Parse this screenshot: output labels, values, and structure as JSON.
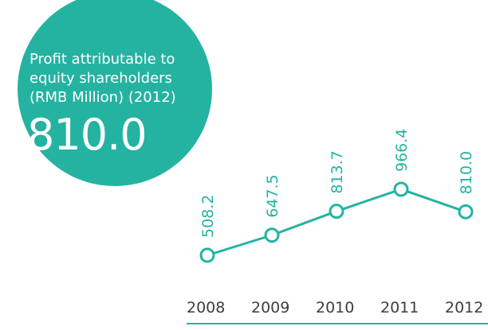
{
  "caption": {
    "line1": "Profit attributable to",
    "line2": "equity shareholders",
    "line3": "(RMB Million) (2012)"
  },
  "highlight_value": "810.0",
  "colors": {
    "accent": "#24b3a1",
    "year_text": "#3d3d3d",
    "background": "#ffffff"
  },
  "chart_data": {
    "type": "line",
    "categories": [
      "2008",
      "2009",
      "2010",
      "2011",
      "2012"
    ],
    "values": [
      508.2,
      647.5,
      813.7,
      966.4,
      810.0
    ],
    "value_labels": [
      "508.2",
      "647.5",
      "813.7",
      "966.4",
      "810.0"
    ],
    "title": "Profit attributable to equity shareholders (RMB Million) (2012)",
    "xlabel": "",
    "ylabel": "",
    "grid": false,
    "legend": "none"
  }
}
